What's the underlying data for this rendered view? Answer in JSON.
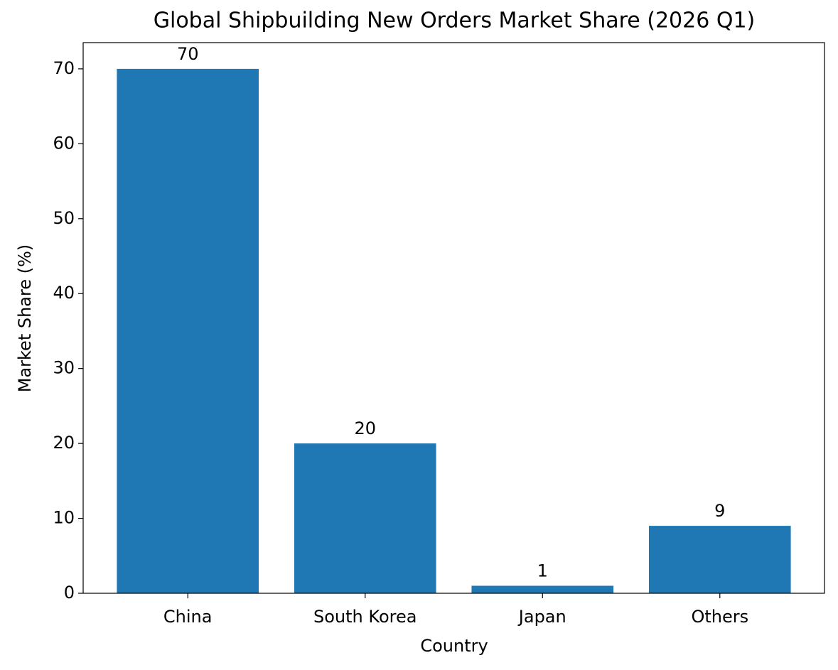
{
  "chart_data": {
    "type": "bar",
    "title": "Global Shipbuilding New Orders Market Share (2026 Q1)",
    "x_label": "Country",
    "y_label": "Market Share (%)",
    "categories": [
      "China",
      "South Korea",
      "Japan",
      "Others"
    ],
    "values": [
      70,
      20,
      1,
      9
    ],
    "color": "#1f77b4",
    "ylim": [
      0,
      73.5
    ],
    "yticks": [
      0,
      10,
      20,
      30,
      40,
      50,
      60,
      70
    ]
  }
}
